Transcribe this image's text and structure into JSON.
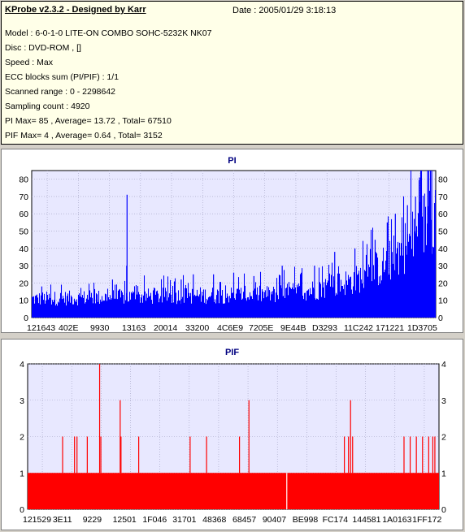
{
  "header": {
    "title": "KProbe v2.3.2 - Designed by Karr",
    "date": "Date : 2005/01/29 3:18:13"
  },
  "info": {
    "model": "Model : 6-0-1-0 LITE-ON COMBO SOHC-5232K NK07",
    "disc": "Disc : DVD-ROM ,  []",
    "speed": "Speed : Max",
    "ecc": "ECC blocks sum (PI/PIF) : 1/1",
    "range": "Scanned range : 0 - 2298642",
    "sampling": "Sampling count : 4920",
    "pi_stats": "PI Max= 85 , Average= 13.72 , Total= 67510",
    "pif_stats": "PIF Max= 4 , Average= 0.64 , Total= 3152"
  },
  "colors": {
    "pi": "#0000ff",
    "pif": "#ff0000",
    "plot_bg": "#e8e8ff",
    "grid": "#a0a0c0"
  },
  "chart_data": [
    {
      "type": "bar",
      "title": "PI",
      "ylim": [
        0,
        85
      ],
      "yticks": [
        0,
        10,
        20,
        30,
        40,
        50,
        60,
        70,
        80
      ],
      "xtick_labels": [
        "121643",
        "402E",
        "9930",
        "13163",
        "20014",
        "33200",
        "4C6E9",
        "7205E",
        "9E44B",
        "D3293",
        "11C242",
        "171221",
        "1D3705"
      ],
      "sampling_count": 4920,
      "max": 85,
      "average": 13.72,
      "baseline_by_progress": [
        [
          0,
          12
        ],
        [
          0.35,
          14
        ],
        [
          0.6,
          15
        ],
        [
          0.7,
          18
        ],
        [
          0.8,
          24
        ],
        [
          0.88,
          35
        ],
        [
          0.94,
          50
        ],
        [
          1.0,
          70
        ]
      ],
      "spikes": [
        [
          0.025,
          18
        ],
        [
          0.2,
          22
        ],
        [
          0.236,
          71
        ],
        [
          0.235,
          30
        ],
        [
          0.37,
          22
        ],
        [
          0.4,
          25
        ],
        [
          0.45,
          25
        ],
        [
          0.5,
          26
        ],
        [
          0.55,
          24
        ],
        [
          0.62,
          30
        ],
        [
          0.7,
          30
        ],
        [
          0.75,
          38
        ],
        [
          0.8,
          40
        ],
        [
          0.85,
          45
        ],
        [
          0.88,
          55
        ],
        [
          0.9,
          60
        ],
        [
          0.93,
          65
        ],
        [
          0.95,
          70
        ],
        [
          0.96,
          81
        ],
        [
          0.98,
          85
        ],
        [
          0.99,
          85
        ]
      ]
    },
    {
      "type": "bar",
      "title": "PIF",
      "ylim": [
        0,
        4
      ],
      "yticks": [
        0,
        1,
        2,
        3,
        4
      ],
      "xtick_labels": [
        "121529",
        "3E11",
        "9229",
        "12501",
        "1F046",
        "31701",
        "48368",
        "68457",
        "90407",
        "BE998",
        "FC174",
        "144581",
        "1A0163",
        "1FF172"
      ],
      "base_level": 1,
      "gap_positions": [
        0.63
      ],
      "spikes": [
        [
          0.085,
          2
        ],
        [
          0.114,
          2
        ],
        [
          0.12,
          2
        ],
        [
          0.145,
          2
        ],
        [
          0.175,
          4
        ],
        [
          0.178,
          2
        ],
        [
          0.225,
          3
        ],
        [
          0.227,
          2
        ],
        [
          0.27,
          2
        ],
        [
          0.395,
          2
        ],
        [
          0.435,
          2
        ],
        [
          0.515,
          2
        ],
        [
          0.538,
          3
        ],
        [
          0.77,
          2
        ],
        [
          0.78,
          2
        ],
        [
          0.785,
          3
        ],
        [
          0.79,
          2
        ],
        [
          0.915,
          2
        ],
        [
          0.93,
          2
        ],
        [
          0.945,
          2
        ],
        [
          0.96,
          2
        ],
        [
          0.975,
          2
        ],
        [
          0.985,
          2
        ],
        [
          0.99,
          2
        ]
      ]
    }
  ]
}
